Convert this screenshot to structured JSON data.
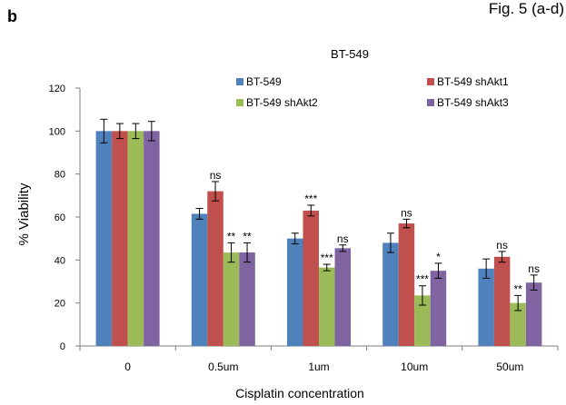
{
  "figure_ref": "Fig. 5 (a-d)",
  "panel_label": "b",
  "chart_data": {
    "type": "bar",
    "title": "BT-549",
    "xlabel": "Cisplatin concentration",
    "ylabel": "% Viability",
    "ylim": [
      0,
      120
    ],
    "yticks": [
      0,
      20,
      40,
      60,
      80,
      100,
      120
    ],
    "categories": [
      "0",
      "0.5um",
      "1um",
      "10um",
      "50um"
    ],
    "legend_position": "top",
    "series": [
      {
        "name": "BT-549",
        "color": "#4f81bd",
        "values": [
          100,
          61.5,
          50,
          48,
          36
        ],
        "errors": [
          5.5,
          2.5,
          2.5,
          4.5,
          4.5
        ],
        "annotations": [
          "",
          "",
          "",
          "",
          ""
        ]
      },
      {
        "name": "BT-549 shAkt1",
        "color": "#c0504d",
        "values": [
          100,
          72,
          63,
          57,
          41.5
        ],
        "errors": [
          3.5,
          4.5,
          2.5,
          2.0,
          2.5
        ],
        "annotations": [
          "",
          "ns",
          "***",
          "ns",
          "ns"
        ]
      },
      {
        "name": "BT-549 shAkt2",
        "color": "#9bbb59",
        "values": [
          100,
          43.5,
          36.5,
          23.5,
          20
        ],
        "errors": [
          3.5,
          4.5,
          1.5,
          4.5,
          3.5
        ],
        "annotations": [
          "",
          "**",
          "***",
          "***",
          "**"
        ]
      },
      {
        "name": "BT-549 shAkt3",
        "color": "#8064a2",
        "values": [
          100,
          43.5,
          45.5,
          35,
          29.5
        ],
        "errors": [
          4.5,
          4.5,
          1.5,
          3.5,
          3.5
        ],
        "annotations": [
          "",
          "**",
          "ns",
          "*",
          "ns"
        ]
      }
    ]
  }
}
